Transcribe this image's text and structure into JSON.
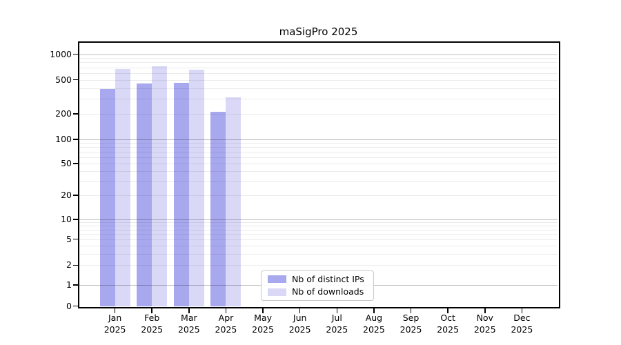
{
  "chart_data": {
    "type": "bar",
    "title": "maSigPro 2025",
    "categories": [
      "Jan",
      "Feb",
      "Mar",
      "Apr",
      "May",
      "Jun",
      "Jul",
      "Aug",
      "Sep",
      "Oct",
      "Nov",
      "Dec"
    ],
    "category_year": "2025",
    "series": [
      {
        "name": "Nb of distinct IPs",
        "color": "#a8a8ef",
        "values": [
          390,
          450,
          460,
          210,
          null,
          null,
          null,
          null,
          null,
          null,
          null,
          null
        ]
      },
      {
        "name": "Nb of downloads",
        "color": "#d9d9f7",
        "values": [
          675,
          720,
          660,
          310,
          null,
          null,
          null,
          null,
          null,
          null,
          null,
          null
        ]
      }
    ],
    "xlabel": "",
    "ylabel": "",
    "y_ticks": [
      0,
      1,
      2,
      5,
      10,
      20,
      50,
      100,
      200,
      500,
      1000
    ],
    "y_scale": "log above 1, linear 0-1",
    "ylim": [
      0,
      1400
    ],
    "grid": "horizontal major and minor gridlines, drawn over bars",
    "legend_position": "lower center inside plot",
    "frame_color": "#000000",
    "gridline_major_color": "#bfbfbf",
    "gridline_minor_color": "#ebebeb"
  }
}
